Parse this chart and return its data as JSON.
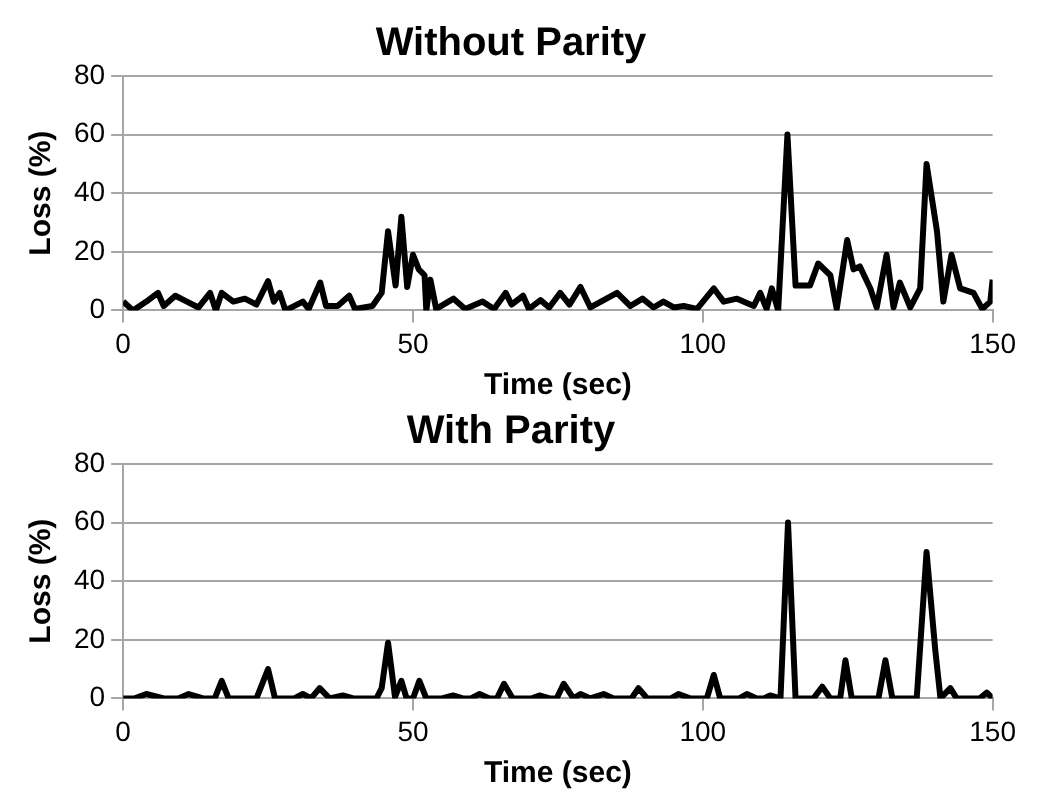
{
  "chart_data": [
    {
      "type": "line",
      "title": "Without Parity",
      "xlabel": "Time (sec)",
      "ylabel": "Loss (%)",
      "color": "#000000",
      "marker": "none",
      "grid": "y",
      "xlim": [
        0,
        150
      ],
      "xticks": [
        0,
        50,
        100,
        150
      ],
      "ylim": [
        0,
        80
      ],
      "yticks": [
        0,
        20,
        40,
        60,
        80
      ],
      "x": [
        0,
        1.7,
        4,
        6,
        7,
        9,
        11,
        13,
        15,
        16,
        17,
        19,
        21,
        23,
        25,
        26,
        27,
        28,
        31,
        32,
        34,
        35,
        37,
        39,
        40,
        43,
        44.6,
        45.7,
        47,
        48,
        49,
        50,
        51,
        52,
        52.3,
        53,
        54,
        57,
        59,
        62,
        64,
        66,
        67,
        69,
        70,
        72,
        73.5,
        75.4,
        77,
        78.9,
        80.6,
        85.2,
        87.5,
        89.6,
        91.5,
        93.2,
        95,
        96.7,
        99,
        101.9,
        103.6,
        105.9,
        108.8,
        109.9,
        111,
        111.9,
        113,
        114.6,
        116,
        118.5,
        119.9,
        122,
        123.1,
        124.9,
        126,
        127.1,
        128.9,
        130,
        131.7,
        132.9,
        134,
        135.8,
        137.5,
        138.6,
        140.4,
        141.5,
        142.9,
        144.4,
        146.7,
        148.2,
        149.6,
        150
      ],
      "values": [
        3,
        0,
        3,
        6,
        1.5,
        5,
        3,
        1,
        6,
        0,
        6,
        3,
        4,
        2,
        10,
        3,
        6,
        0,
        3,
        0.5,
        9.5,
        1.5,
        1.5,
        5,
        0.5,
        1.5,
        6,
        27,
        8.5,
        32,
        8,
        19,
        14,
        12,
        0,
        10.5,
        0.5,
        4,
        0.5,
        3,
        0.5,
        6,
        2,
        5,
        0.5,
        3.5,
        1,
        6,
        2,
        8,
        1,
        6,
        1.5,
        4,
        1,
        3,
        1,
        1.5,
        0.5,
        7.5,
        3,
        4,
        1.5,
        6,
        0.5,
        7.5,
        0,
        60,
        8.5,
        8.5,
        16,
        12,
        0.5,
        24,
        14,
        15,
        7.5,
        1,
        19,
        1,
        9.5,
        1,
        7.5,
        50,
        27,
        3,
        19,
        7.5,
        6,
        0.5,
        3,
        10.5
      ]
    },
    {
      "type": "line",
      "title": "With Parity",
      "xlabel": "Time (sec)",
      "ylabel": "Loss (%)",
      "color": "#000000",
      "marker": "none",
      "grid": "y",
      "xlim": [
        0,
        150
      ],
      "xticks": [
        0,
        50,
        100,
        150
      ],
      "ylim": [
        0,
        80
      ],
      "yticks": [
        0,
        20,
        40,
        60,
        80
      ],
      "x": [
        0,
        2,
        4,
        7,
        9.5,
        11.3,
        13.8,
        15.8,
        17,
        18.2,
        23,
        25,
        26.2,
        29.5,
        31,
        32.4,
        33.9,
        35.6,
        37.9,
        39.7,
        43.7,
        44.6,
        45.7,
        46.9,
        48,
        48.9,
        50,
        51.1,
        52.3,
        55,
        56.9,
        58.6,
        60,
        61.5,
        63.2,
        64.5,
        65.7,
        67.2,
        70.5,
        71.8,
        73.6,
        74.8,
        76,
        77.7,
        78.9,
        80.6,
        82.9,
        84.6,
        87.7,
        88.9,
        90.4,
        94.5,
        95.8,
        97.8,
        100.7,
        101.9,
        103,
        106.3,
        107.6,
        109.3,
        110.5,
        111.6,
        113.4,
        114.7,
        116,
        119.1,
        120.6,
        122,
        123.7,
        124.6,
        125.7,
        130.3,
        131.5,
        132.7,
        136.9,
        138.6,
        140.1,
        141,
        142.7,
        143.8,
        147.8,
        149,
        150
      ],
      "values": [
        0,
        0,
        1.5,
        0,
        0,
        1.5,
        0,
        0,
        6,
        0,
        0,
        10,
        0,
        0,
        1.5,
        0,
        3.5,
        0,
        1,
        0,
        0,
        3.5,
        19,
        0.5,
        6,
        0,
        0,
        6,
        0,
        0,
        1,
        0,
        0,
        1.5,
        0,
        0,
        5,
        0,
        0,
        1,
        0,
        0,
        5,
        0,
        1.5,
        0,
        1.5,
        0,
        0,
        3.5,
        0,
        0,
        1.5,
        0,
        0,
        8,
        0,
        0,
        1.5,
        0,
        0,
        1,
        0,
        60,
        0,
        0,
        4,
        0,
        0,
        13,
        0,
        0,
        13,
        0,
        0,
        50,
        16.5,
        0,
        3.5,
        0,
        0,
        2,
        0
      ]
    }
  ]
}
